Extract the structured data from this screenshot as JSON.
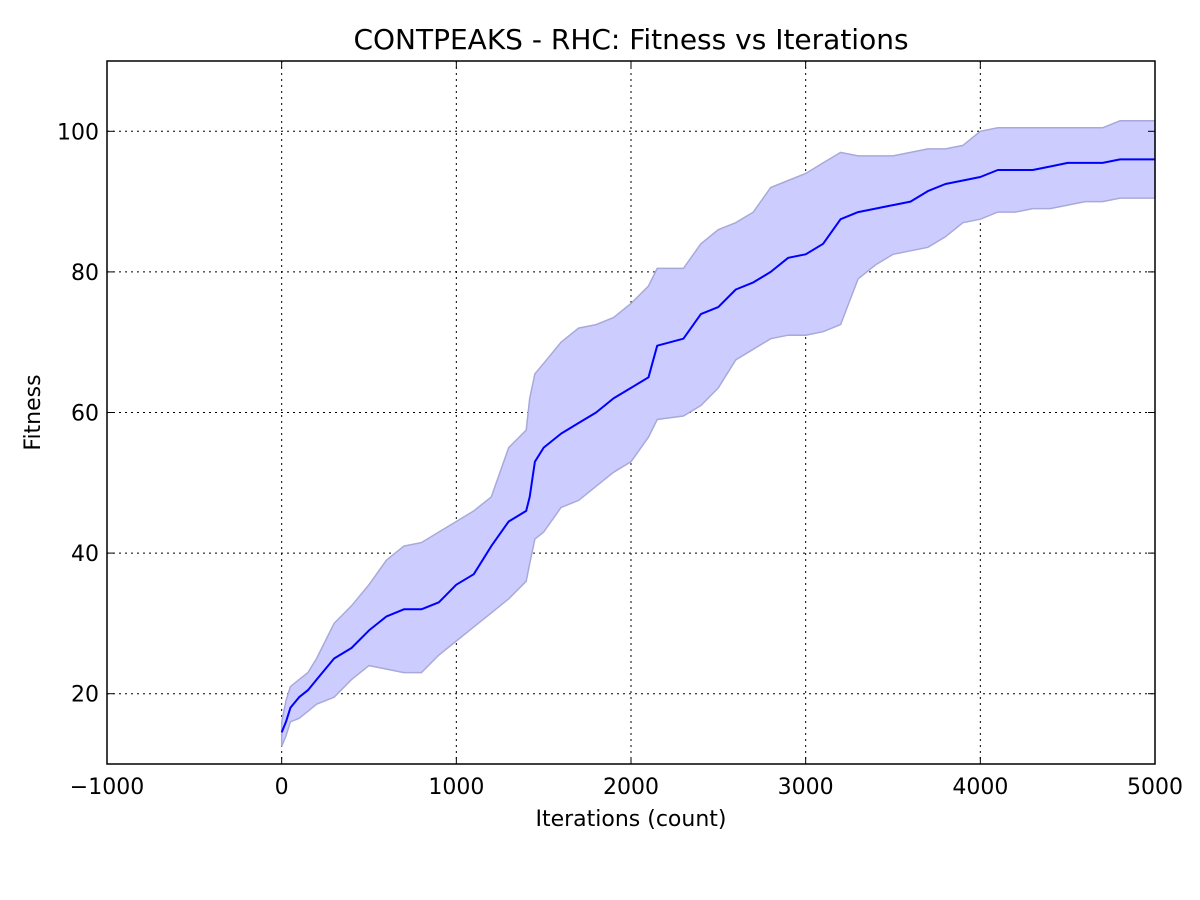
{
  "chart_data": {
    "type": "line",
    "title": "CONTPEAKS - RHC: Fitness vs Iterations",
    "xlabel": "Iterations (count)",
    "ylabel": "Fitness",
    "xlim": [
      -1000,
      5000
    ],
    "ylim": [
      10,
      110
    ],
    "x_ticks": [
      -1000,
      0,
      1000,
      2000,
      3000,
      4000,
      5000
    ],
    "x_tick_labels": [
      "−1000",
      "0",
      "1000",
      "2000",
      "3000",
      "4000",
      "5000"
    ],
    "y_ticks": [
      20,
      40,
      60,
      80,
      100
    ],
    "y_tick_labels": [
      "20",
      "40",
      "60",
      "80",
      "100"
    ],
    "grid": true,
    "grid_style": "dotted",
    "colors": {
      "line": "#0000ff",
      "band_fill": "#ccccff",
      "band_edge": "#a9a9d9"
    },
    "series": [
      {
        "x": [
          0,
          25,
          50,
          100,
          150,
          200,
          300,
          400,
          500,
          600,
          700,
          800,
          900,
          1000,
          1100,
          1200,
          1300,
          1400,
          1420,
          1450,
          1500,
          1600,
          1700,
          1800,
          1900,
          2000,
          2100,
          2150,
          2300,
          2400,
          2500,
          2600,
          2700,
          2800,
          2900,
          3000,
          3100,
          3200,
          3300,
          3400,
          3500,
          3600,
          3700,
          3800,
          3900,
          4000,
          4100,
          4200,
          4300,
          4400,
          4500,
          4600,
          4700,
          4800,
          4900,
          5000
        ],
        "y": [
          14.5,
          16.0,
          18.0,
          19.5,
          20.5,
          22.0,
          25.0,
          26.5,
          29.0,
          31.0,
          32.0,
          32.0,
          33.0,
          35.5,
          37.0,
          41.0,
          44.5,
          46.0,
          48.0,
          53.0,
          55.0,
          57.0,
          58.5,
          60.0,
          62.0,
          63.5,
          65.0,
          69.5,
          70.5,
          74.0,
          75.0,
          77.5,
          78.5,
          80.0,
          82.0,
          82.5,
          84.0,
          87.5,
          88.5,
          89.0,
          89.5,
          90.0,
          91.5,
          92.5,
          93.0,
          93.5,
          94.5,
          94.5,
          94.5,
          95.0,
          95.5,
          95.5,
          95.5,
          96.0,
          96.0,
          96.0
        ],
        "upper": [
          16.0,
          19.0,
          21.0,
          22.0,
          23.0,
          25.0,
          30.0,
          32.5,
          35.5,
          39.0,
          41.0,
          41.5,
          43.0,
          44.5,
          46.0,
          48.0,
          55.0,
          57.5,
          62.0,
          65.5,
          67.0,
          70.0,
          72.0,
          72.5,
          73.5,
          75.5,
          78.0,
          80.5,
          80.5,
          84.0,
          86.0,
          87.0,
          88.5,
          92.0,
          93.0,
          94.0,
          95.5,
          97.0,
          96.5,
          96.5,
          96.5,
          97.0,
          97.5,
          97.5,
          98.0,
          100.0,
          100.5,
          100.5,
          100.5,
          100.5,
          100.5,
          100.5,
          100.5,
          101.5,
          101.5,
          101.5
        ],
        "lower": [
          12.5,
          14.0,
          16.0,
          16.5,
          17.5,
          18.5,
          19.5,
          22.0,
          24.0,
          23.5,
          23.0,
          23.0,
          25.5,
          27.5,
          29.5,
          31.5,
          33.5,
          36.0,
          38.5,
          42.0,
          43.0,
          46.5,
          47.5,
          49.5,
          51.5,
          53.0,
          56.5,
          59.0,
          59.5,
          61.0,
          63.5,
          67.5,
          69.0,
          70.5,
          71.0,
          71.0,
          71.5,
          72.5,
          79.0,
          81.0,
          82.5,
          83.0,
          83.5,
          85.0,
          87.0,
          87.5,
          88.5,
          88.5,
          89.0,
          89.0,
          89.5,
          90.0,
          90.0,
          90.5,
          90.5,
          90.5
        ]
      }
    ]
  }
}
